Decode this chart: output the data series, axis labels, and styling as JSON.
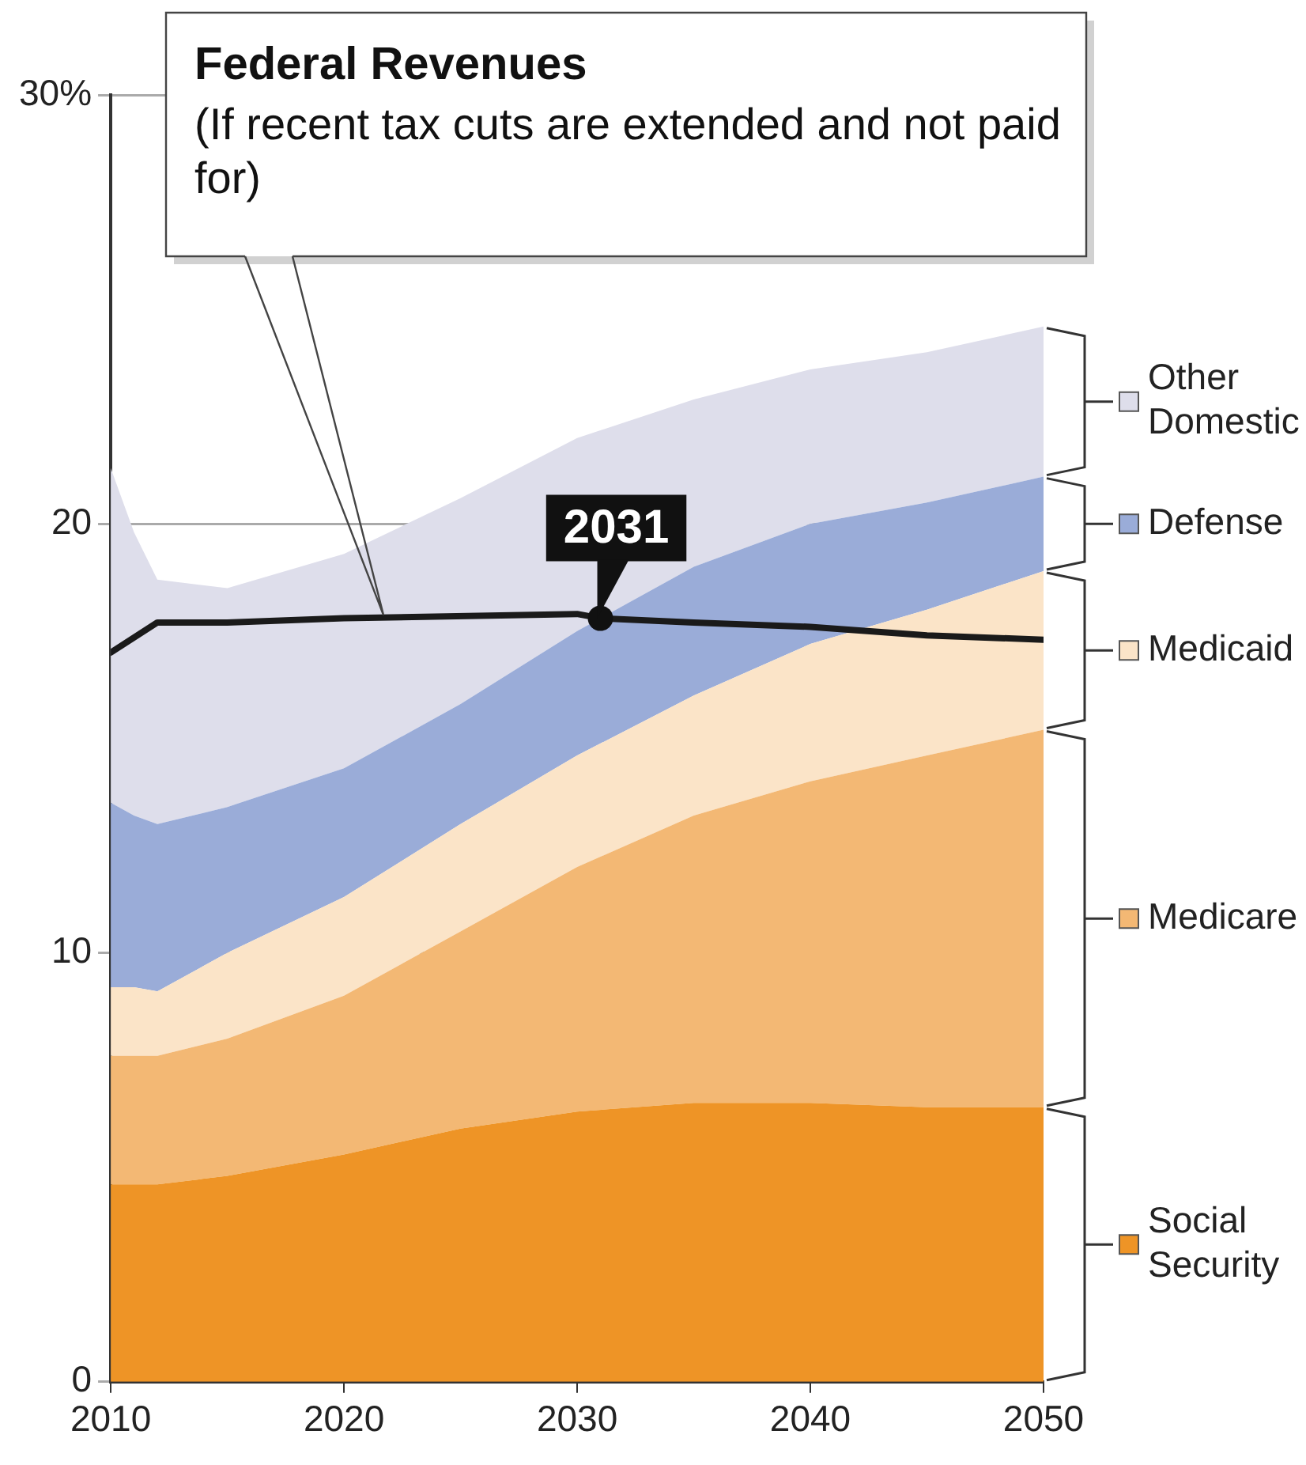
{
  "chart_data": {
    "type": "area",
    "stacked": true,
    "x": [
      2010,
      2011,
      2012,
      2015,
      2020,
      2025,
      2030,
      2035,
      2040,
      2045,
      2050
    ],
    "series": [
      {
        "name": "Social Security",
        "color": "#ee9426",
        "values": [
          4.6,
          4.6,
          4.6,
          4.8,
          5.3,
          5.9,
          6.3,
          6.5,
          6.5,
          6.4,
          6.4
        ]
      },
      {
        "name": "Medicare",
        "color": "#f3b874",
        "values": [
          3.0,
          3.0,
          3.0,
          3.2,
          3.7,
          4.6,
          5.7,
          6.7,
          7.5,
          8.2,
          8.8
        ]
      },
      {
        "name": "Medicaid",
        "color": "#fbe4c8",
        "values": [
          1.6,
          1.6,
          1.5,
          2.0,
          2.3,
          2.5,
          2.6,
          2.8,
          3.2,
          3.4,
          3.7
        ]
      },
      {
        "name": "Defense",
        "color": "#9aacd8",
        "values": [
          4.3,
          4.0,
          3.9,
          3.4,
          3.0,
          2.8,
          2.9,
          3.0,
          2.8,
          2.5,
          2.2
        ]
      },
      {
        "name": "Other Domestic",
        "color": "#dedeeb",
        "values": [
          7.8,
          6.6,
          5.7,
          5.1,
          5.0,
          4.8,
          4.5,
          3.9,
          3.6,
          3.5,
          3.5
        ]
      },
      {
        "name": "Federal Revenues",
        "type": "line",
        "color": "#1a1a1a",
        "x": [
          2010,
          2012,
          2015,
          2020,
          2030,
          2031,
          2035,
          2040,
          2045,
          2050
        ],
        "values": [
          17.0,
          17.7,
          17.7,
          17.8,
          17.9,
          17.8,
          17.7,
          17.6,
          17.4,
          17.3
        ]
      }
    ],
    "annotations": [
      "(If recent tax cuts are extended and not paid for)",
      {
        "text": "2031",
        "x": 2031,
        "y": 17.8
      }
    ],
    "xlim": [
      2010,
      2050
    ],
    "xticks": [
      2010,
      2020,
      2030,
      2040,
      2050
    ],
    "ylim": [
      0,
      30
    ],
    "yticks": [
      0,
      10,
      20,
      {
        "value": 30,
        "label": "30%"
      }
    ],
    "grid": "y",
    "legend": "right",
    "marker": "none",
    "line_style": "solid"
  }
}
